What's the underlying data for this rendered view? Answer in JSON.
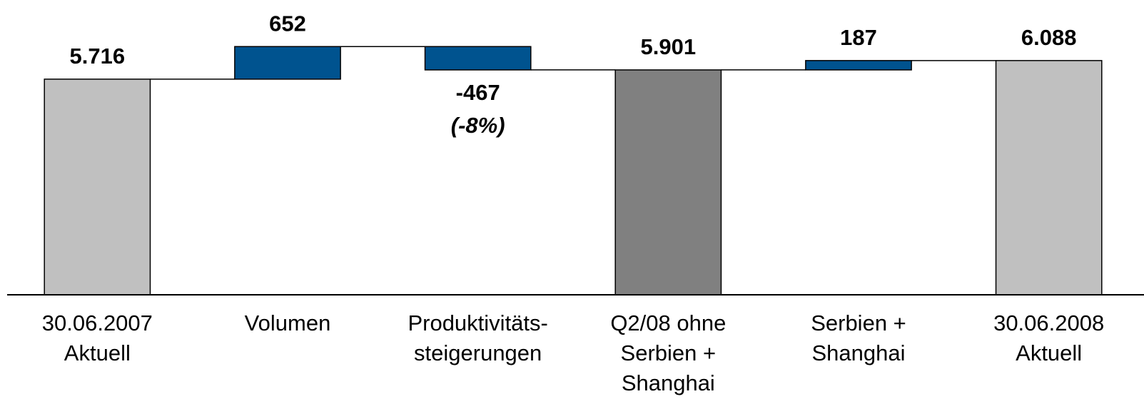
{
  "chart_data": {
    "type": "waterfall",
    "categories": [
      "30.06.2007\nAktuell",
      "Volumen",
      "Produktivitäts-\nsteigerungen",
      "Q2/08 ohne\nSerbien +\nShanghai",
      "Serbien +\nShanghai",
      "30.06.2008\nAktuell"
    ],
    "values": [
      5716,
      652,
      -467,
      5901,
      187,
      6088
    ],
    "value_labels": [
      "5.716",
      "652",
      "-467",
      "5.901",
      "187",
      "6.088"
    ],
    "measure": [
      "absolute",
      "relative",
      "relative",
      "absolute",
      "relative",
      "absolute"
    ],
    "colors": [
      "#c0c0c0",
      "#00538f",
      "#00538f",
      "#808080",
      "#00538f",
      "#c0c0c0"
    ],
    "annotations": [
      {
        "index": 2,
        "text": "(-8%)"
      }
    ],
    "ylim": [
      1400,
      7300
    ]
  }
}
